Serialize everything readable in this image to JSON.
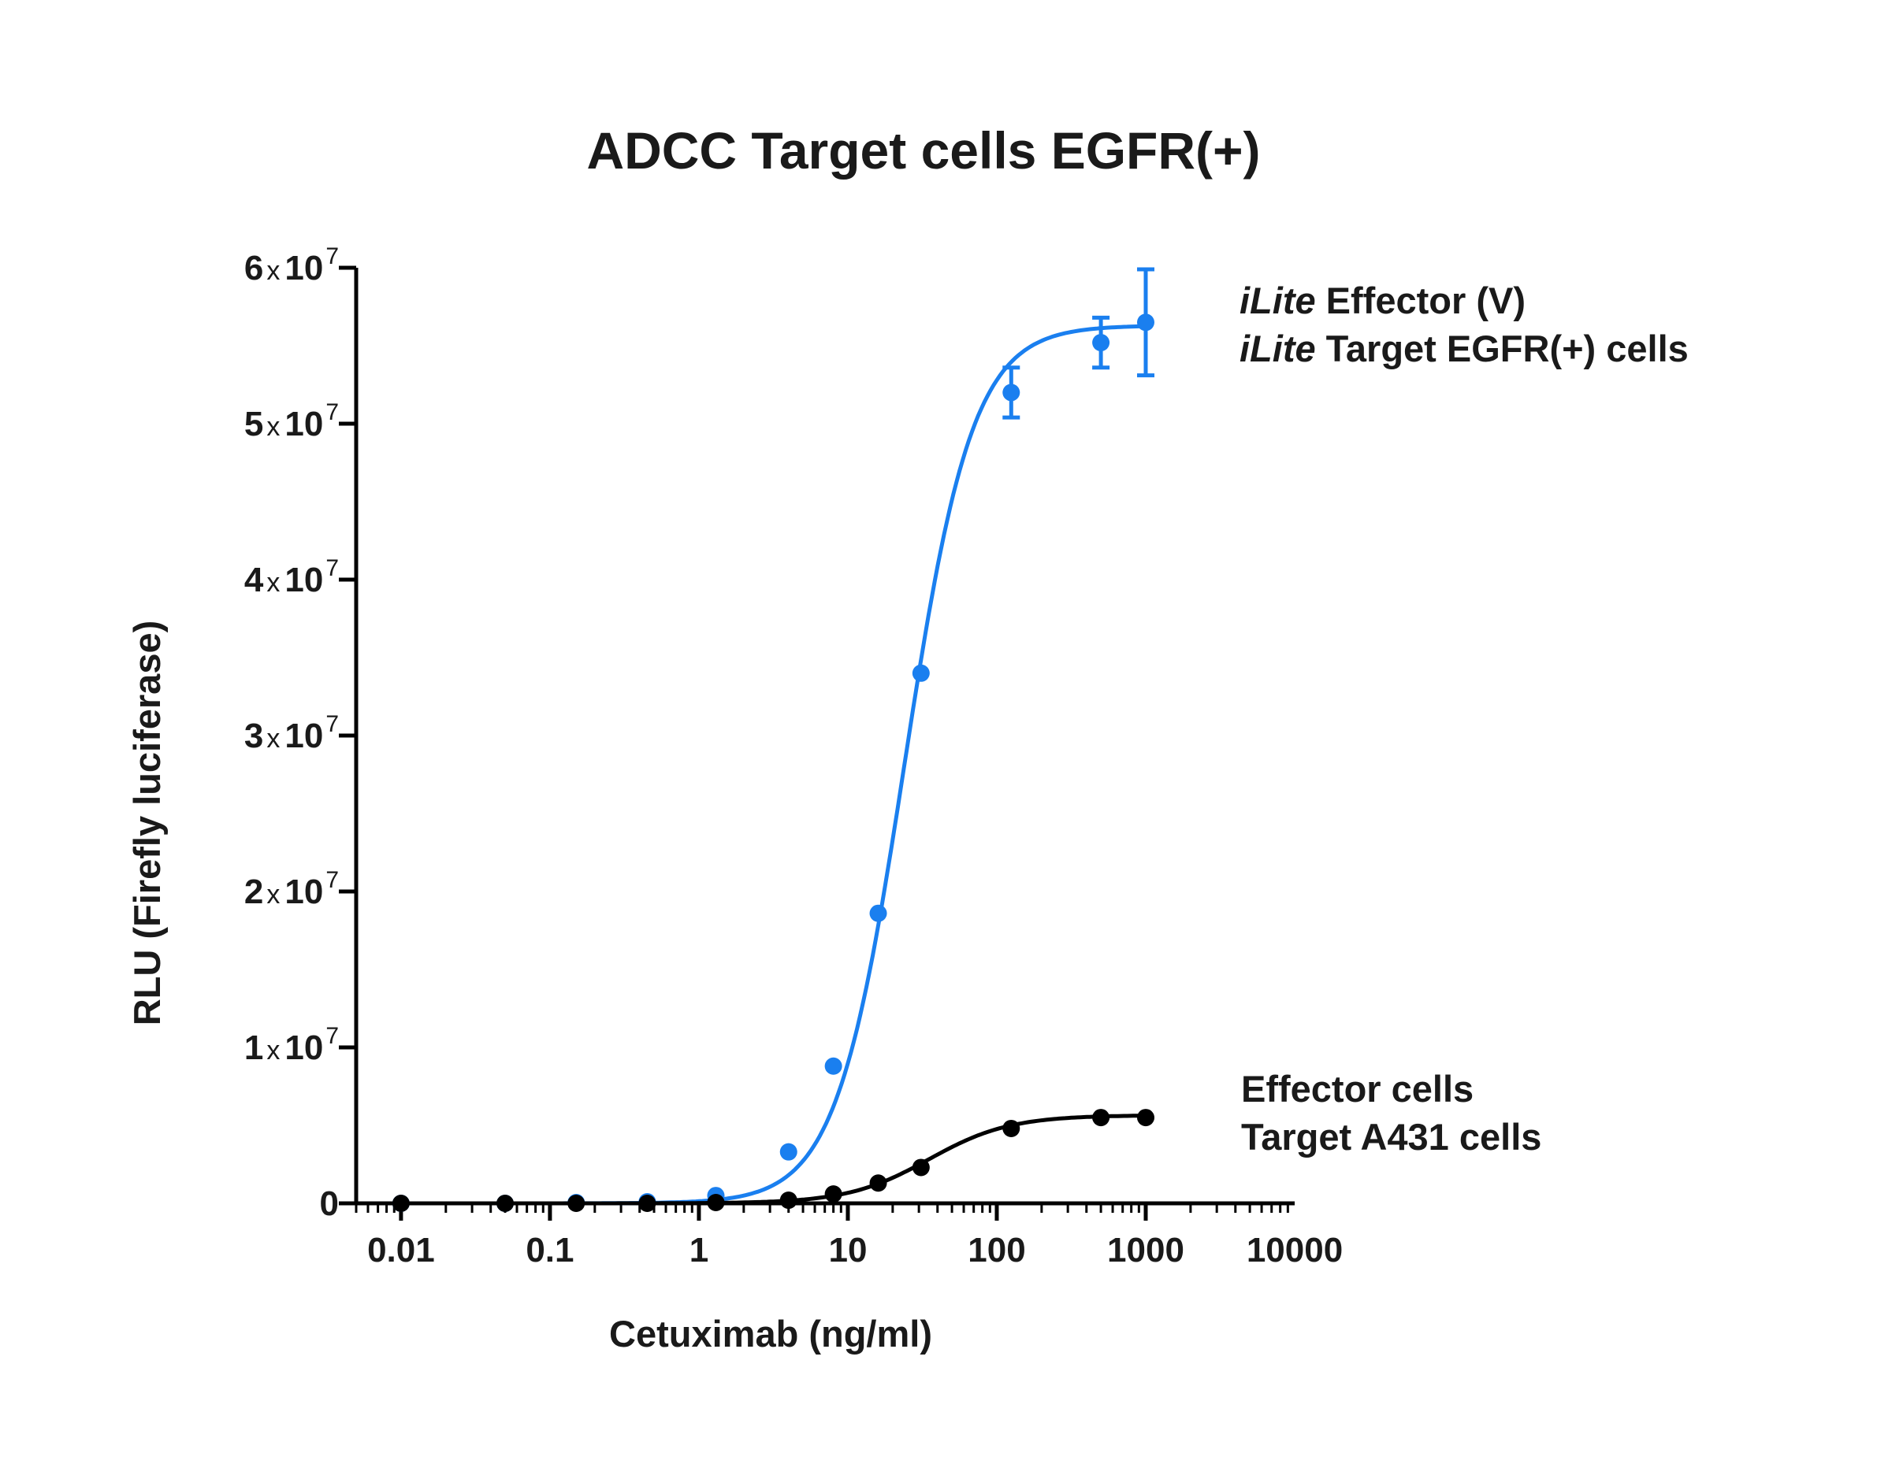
{
  "chart_data": {
    "type": "scatter",
    "title": "ADCC Target cells EGFR(+)",
    "xlabel": "Cetuximab (ng/ml)",
    "ylabel": "RLU (Firefly luciferase)",
    "x_scale": "log10",
    "xlim": [
      0.005,
      10000
    ],
    "ylim": [
      0,
      60000000
    ],
    "x_ticks": [
      {
        "value": 0.01,
        "label": "0.01"
      },
      {
        "value": 0.1,
        "label": "0.1"
      },
      {
        "value": 1,
        "label": "1"
      },
      {
        "value": 10,
        "label": "10"
      },
      {
        "value": 100,
        "label": "100"
      },
      {
        "value": 1000,
        "label": "1000"
      },
      {
        "value": 10000,
        "label": "10000"
      }
    ],
    "y_ticks": [
      {
        "value": 0,
        "mantissa": "0",
        "times": "",
        "base": "",
        "exp": ""
      },
      {
        "value": 10000000,
        "mantissa": "1",
        "times": "x",
        "base": "10",
        "exp": "7"
      },
      {
        "value": 20000000,
        "mantissa": "2",
        "times": "x",
        "base": "10",
        "exp": "7"
      },
      {
        "value": 30000000,
        "mantissa": "3",
        "times": "x",
        "base": "10",
        "exp": "7"
      },
      {
        "value": 40000000,
        "mantissa": "4",
        "times": "x",
        "base": "10",
        "exp": "7"
      },
      {
        "value": 50000000,
        "mantissa": "5",
        "times": "x",
        "base": "10",
        "exp": "7"
      },
      {
        "value": 60000000,
        "mantissa": "6",
        "times": "x",
        "base": "10",
        "exp": "7"
      }
    ],
    "grid": false,
    "series": [
      {
        "color": "#1a7fef",
        "legend_lines": [
          {
            "italic": "iLite",
            "rest": " Effector (V)"
          },
          {
            "italic": "iLite",
            "rest": " Target EGFR(+) cells"
          }
        ],
        "points": [
          {
            "x": 0.01,
            "y": 0
          },
          {
            "x": 0.05,
            "y": 0
          },
          {
            "x": 0.15,
            "y": 50000
          },
          {
            "x": 0.45,
            "y": 100000
          },
          {
            "x": 1.3,
            "y": 500000
          },
          {
            "x": 4,
            "y": 3300000
          },
          {
            "x": 8,
            "y": 8800000
          },
          {
            "x": 16,
            "y": 18600000
          },
          {
            "x": 31,
            "y": 34000000
          },
          {
            "x": 125,
            "y": 52000000,
            "err": 1600000
          },
          {
            "x": 500,
            "y": 55200000,
            "err": 1600000
          },
          {
            "x": 1000,
            "y": 56500000,
            "err": 3400000
          }
        ],
        "fit": {
          "bottom": 0,
          "top": 56300000,
          "ec50": 24,
          "hill": 1.9
        }
      },
      {
        "color": "#000000",
        "legend_lines": [
          {
            "italic": "",
            "rest": "Effector cells"
          },
          {
            "italic": "",
            "rest": "Target A431 cells"
          }
        ],
        "points": [
          {
            "x": 0.01,
            "y": 0
          },
          {
            "x": 0.05,
            "y": 0
          },
          {
            "x": 0.15,
            "y": 0
          },
          {
            "x": 0.45,
            "y": 0
          },
          {
            "x": 1.3,
            "y": 50000
          },
          {
            "x": 4,
            "y": 200000
          },
          {
            "x": 8,
            "y": 600000
          },
          {
            "x": 16,
            "y": 1300000
          },
          {
            "x": 31,
            "y": 2300000
          },
          {
            "x": 125,
            "y": 4800000
          },
          {
            "x": 500,
            "y": 5500000
          },
          {
            "x": 1000,
            "y": 5500000
          }
        ],
        "fit": {
          "bottom": 0,
          "top": 5650000,
          "ec50": 35,
          "hill": 1.6
        }
      }
    ]
  }
}
